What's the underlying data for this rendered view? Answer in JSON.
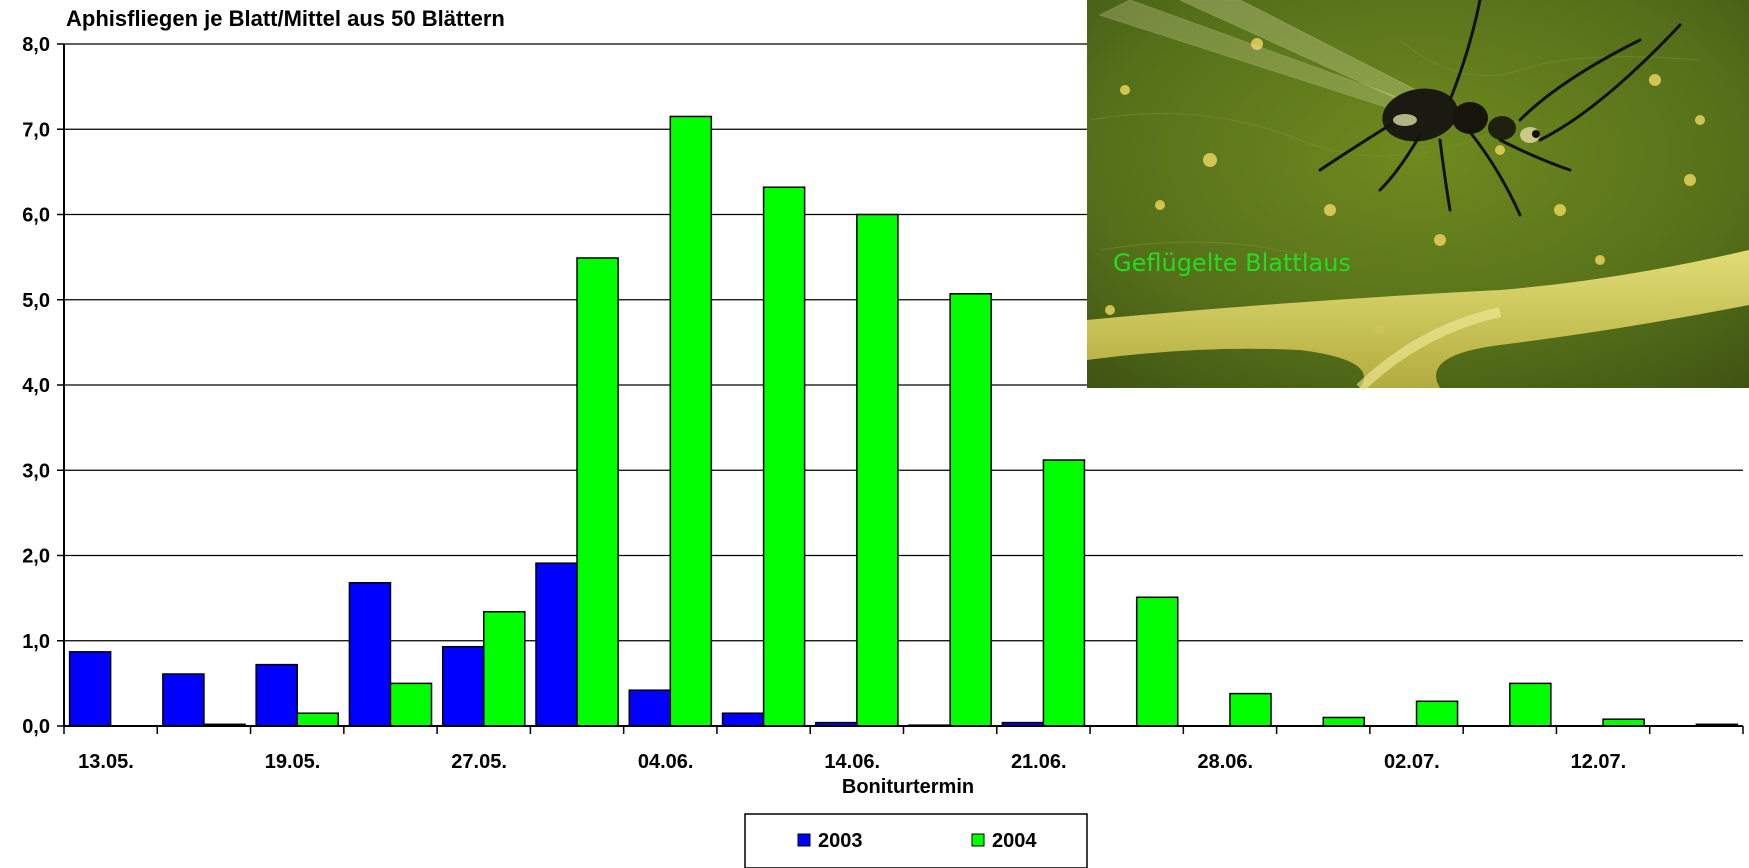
{
  "chart_data": {
    "type": "bar",
    "title": "",
    "ylabel": "Aphisfliegen je Blatt/Mittel aus 50 Blättern",
    "xlabel": "Boniturtermin",
    "ylim": [
      0,
      8
    ],
    "yticks": [
      "0,0",
      "1,0",
      "2,0",
      "3,0",
      "4,0",
      "5,0",
      "6,0",
      "7,0",
      "8,0"
    ],
    "categories": [
      "13.05.",
      "",
      "19.05.",
      "",
      "27.05.",
      "",
      "04.06.",
      "",
      "14.06.",
      "",
      "21.06.",
      "",
      "28.06.",
      "",
      "02.07.",
      "",
      "12.07.",
      ""
    ],
    "series": [
      {
        "name": "2003",
        "color": "#0000FF",
        "values": [
          0.87,
          0.61,
          0.72,
          1.68,
          0.93,
          1.91,
          0.42,
          0.15,
          0.04,
          0.01,
          0.04,
          0,
          0,
          0,
          0,
          0,
          0,
          0
        ]
      },
      {
        "name": "2004",
        "color": "#00FF00",
        "values": [
          0,
          0.02,
          0.15,
          0.5,
          1.34,
          5.49,
          7.15,
          6.32,
          6.0,
          5.07,
          3.12,
          1.51,
          0.38,
          0.1,
          0.29,
          0.5,
          0.08,
          0.02
        ]
      }
    ],
    "grid": true,
    "legend_position": "bottom-center"
  },
  "inset_photo": {
    "caption": "Geflügelte Blattlaus",
    "caption_color": "#22DD22"
  }
}
